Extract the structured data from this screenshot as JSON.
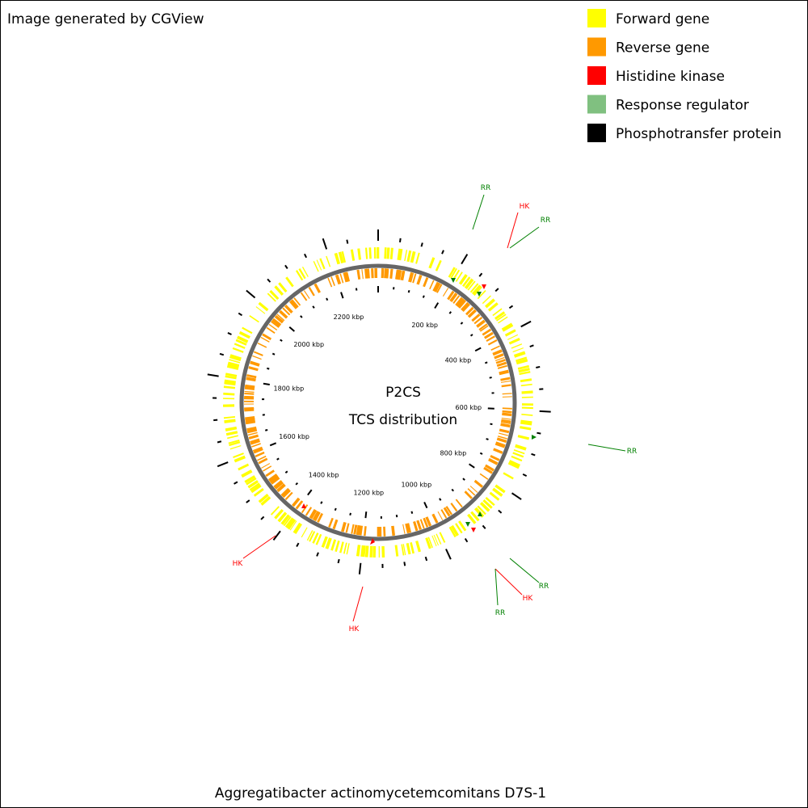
{
  "header": {
    "credit": "Image generated by CGView"
  },
  "legend": [
    {
      "label": "Forward gene",
      "color": "#ffff00"
    },
    {
      "label": "Reverse gene",
      "color": "#ff9900"
    },
    {
      "label": "Histidine kinase",
      "color": "#ff0000"
    },
    {
      "label": "Response regulator",
      "color": "#80c080"
    },
    {
      "label": "Phosphotransfer protein",
      "color": "#000000"
    }
  ],
  "center": {
    "title": "P2CS",
    "subtitle": "TCS distribution"
  },
  "scale_labels": [
    "200 kbp",
    "400 kbp",
    "600 kbp",
    "800 kbp",
    "1000 kbp",
    "1200 kbp",
    "1400 kbp",
    "1600 kbp",
    "1800 kbp",
    "2000 kbp",
    "2200 kbp"
  ],
  "annotations": [
    {
      "label": "RR",
      "color": "#008000"
    },
    {
      "label": "HK",
      "color": "#ff0000"
    },
    {
      "label": "RR",
      "color": "#008000"
    },
    {
      "label": "RR",
      "color": "#008000"
    },
    {
      "label": "RR",
      "color": "#008000"
    },
    {
      "label": "HK",
      "color": "#ff0000"
    },
    {
      "label": "RR",
      "color": "#008000"
    },
    {
      "label": "HK",
      "color": "#ff0000"
    },
    {
      "label": "HK",
      "color": "#ff0000"
    }
  ],
  "footer": {
    "organism": "Aggregatibacter actinomycetemcomitans D7S-1"
  }
}
